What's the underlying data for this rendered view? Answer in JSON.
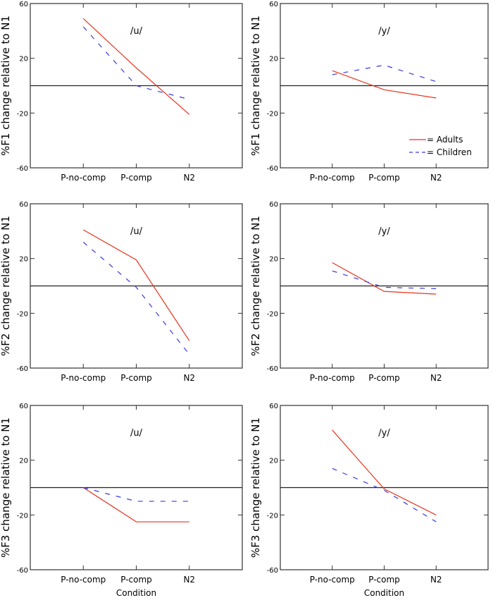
{
  "legend": {
    "adults": "= Adults",
    "children": "= Children",
    "placement": "bottom-right of top-right panel"
  },
  "colors": {
    "adults": "#e8341c",
    "children": "#3a3ae0"
  },
  "chart_data": [
    {
      "type": "line",
      "title": "/u/",
      "ylabel": "%F1 change relative to N1",
      "xlabel": "",
      "categories": [
        "P-no-comp",
        "P-comp",
        "N2"
      ],
      "ylim": [
        -60,
        60
      ],
      "yticks": [
        60,
        20,
        -20,
        -60
      ],
      "grid": false,
      "series": [
        {
          "name": "Adults",
          "values": [
            49,
            13,
            -21
          ]
        },
        {
          "name": "Children",
          "values": [
            43,
            0,
            -10
          ]
        }
      ]
    },
    {
      "type": "line",
      "title": "/y/",
      "ylabel": "%F1 change relative to N1",
      "xlabel": "",
      "categories": [
        "P-no-comp",
        "P-comp",
        "N2"
      ],
      "ylim": [
        -60,
        60
      ],
      "yticks": [
        60,
        20,
        -20,
        -60
      ],
      "grid": false,
      "series": [
        {
          "name": "Adults",
          "values": [
            11,
            -3,
            -9
          ]
        },
        {
          "name": "Children",
          "values": [
            8,
            15,
            3
          ]
        }
      ]
    },
    {
      "type": "line",
      "title": "/u/",
      "ylabel": "%F2 change relative to N1",
      "xlabel": "",
      "categories": [
        "P-no-comp",
        "P-comp",
        "N2"
      ],
      "ylim": [
        -60,
        60
      ],
      "yticks": [
        60,
        20,
        -20,
        -60
      ],
      "grid": false,
      "series": [
        {
          "name": "Adults",
          "values": [
            41,
            19,
            -40
          ]
        },
        {
          "name": "Children",
          "values": [
            32,
            -1,
            -50
          ]
        }
      ]
    },
    {
      "type": "line",
      "title": "/y/",
      "ylabel": "%F2 change relative to N1",
      "xlabel": "",
      "categories": [
        "P-no-comp",
        "P-comp",
        "N2"
      ],
      "ylim": [
        -60,
        60
      ],
      "yticks": [
        60,
        20,
        -20,
        -60
      ],
      "grid": false,
      "series": [
        {
          "name": "Adults",
          "values": [
            17,
            -4,
            -6
          ]
        },
        {
          "name": "Children",
          "values": [
            11,
            -1,
            -2
          ]
        }
      ]
    },
    {
      "type": "line",
      "title": "/u/",
      "ylabel": "%F3 change relative to N1",
      "xlabel": "Condition",
      "categories": [
        "P-no-comp",
        "P-comp",
        "N2"
      ],
      "ylim": [
        -60,
        60
      ],
      "yticks": [
        60,
        20,
        -20,
        -60
      ],
      "grid": false,
      "series": [
        {
          "name": "Adults",
          "values": [
            0,
            -25,
            -25
          ]
        },
        {
          "name": "Children",
          "values": [
            0,
            -10,
            -10
          ]
        }
      ]
    },
    {
      "type": "line",
      "title": "/y/",
      "ylabel": "%F3 change relative to N1",
      "xlabel": "Condition",
      "categories": [
        "P-no-comp",
        "P-comp",
        "N2"
      ],
      "ylim": [
        -60,
        60
      ],
      "yticks": [
        60,
        20,
        -20,
        -60
      ],
      "grid": false,
      "series": [
        {
          "name": "Adults",
          "values": [
            42,
            -1,
            -20
          ]
        },
        {
          "name": "Children",
          "values": [
            14,
            -2,
            -25
          ]
        }
      ]
    }
  ]
}
